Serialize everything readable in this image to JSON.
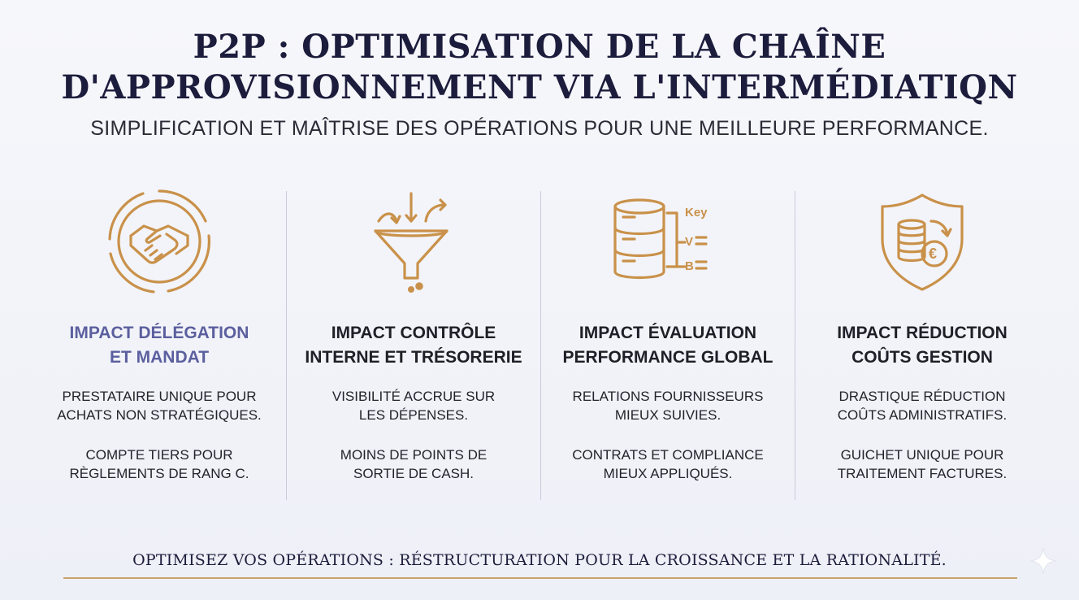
{
  "header": {
    "title_line1": "P2P : OPTIMISATION DE LA CHAÎNE",
    "title_line2": "D'APPROVISIONNEMENT VIA L'INTERMÉDIATIQN",
    "subtitle": "SIMPLIFICATION ET MAÎTRISE DES OPÉRATIONS POUR UNE MEILLEURE PERFORMANCE."
  },
  "columns": [
    {
      "icon": "handshake-icon",
      "heading": [
        "IMPACT DÉLÉGATION",
        "ET MANDAT"
      ],
      "text1": [
        "PRESTATAIRE UNIQUE POUR",
        "ACHATS NON STRATÉGIQUES."
      ],
      "text2": [
        "COMPTE TIERS POUR",
        "RÈGLEMENTS DE RANG C."
      ]
    },
    {
      "icon": "funnel-icon",
      "heading": [
        "IMPACT CONTRÔLE",
        "INTERNE ET TRÉSORERIE"
      ],
      "text1": [
        "VISIBILITÉ ACCRUE SUR",
        "LES DÉPENSES."
      ],
      "text2": [
        "MOINS DE POINTS DE",
        "SORTIE DE CASH."
      ]
    },
    {
      "icon": "database-icon",
      "icon_labels": [
        "Key",
        "V",
        "B"
      ],
      "heading": [
        "IMPACT ÉVALUATION",
        "PERFORMANCE GLOBAL"
      ],
      "text1": [
        "RELATIONS FOURNISSEURS",
        "MIEUX SUIVIES."
      ],
      "text2": [
        "CONTRATS ET COMPLIANCE",
        "MIEUX APPLIQUÉS."
      ]
    },
    {
      "icon": "shield-coins-icon",
      "icon_symbol": "€",
      "heading": [
        "IMPACT RÉDUCTION",
        "COÛTS GESTION"
      ],
      "text1": [
        "DRASTIQUE RÉDUCTION",
        "COÛTS ADMINISTRATIFS."
      ],
      "text2": [
        "GUICHET UNIQUE POUR",
        "TRAITEMENT FACTURES."
      ]
    }
  ],
  "footer": {
    "text": "OPTIMISEZ VOS OPÉRATIONS : RÉSTRUCTURATION POUR LA CROISSANCE ET LA RATIONALITÉ."
  },
  "colors": {
    "accent_gold": "#c9914a",
    "heading_accent": "#5b5f9e",
    "title_navy": "#1c1c3c"
  }
}
